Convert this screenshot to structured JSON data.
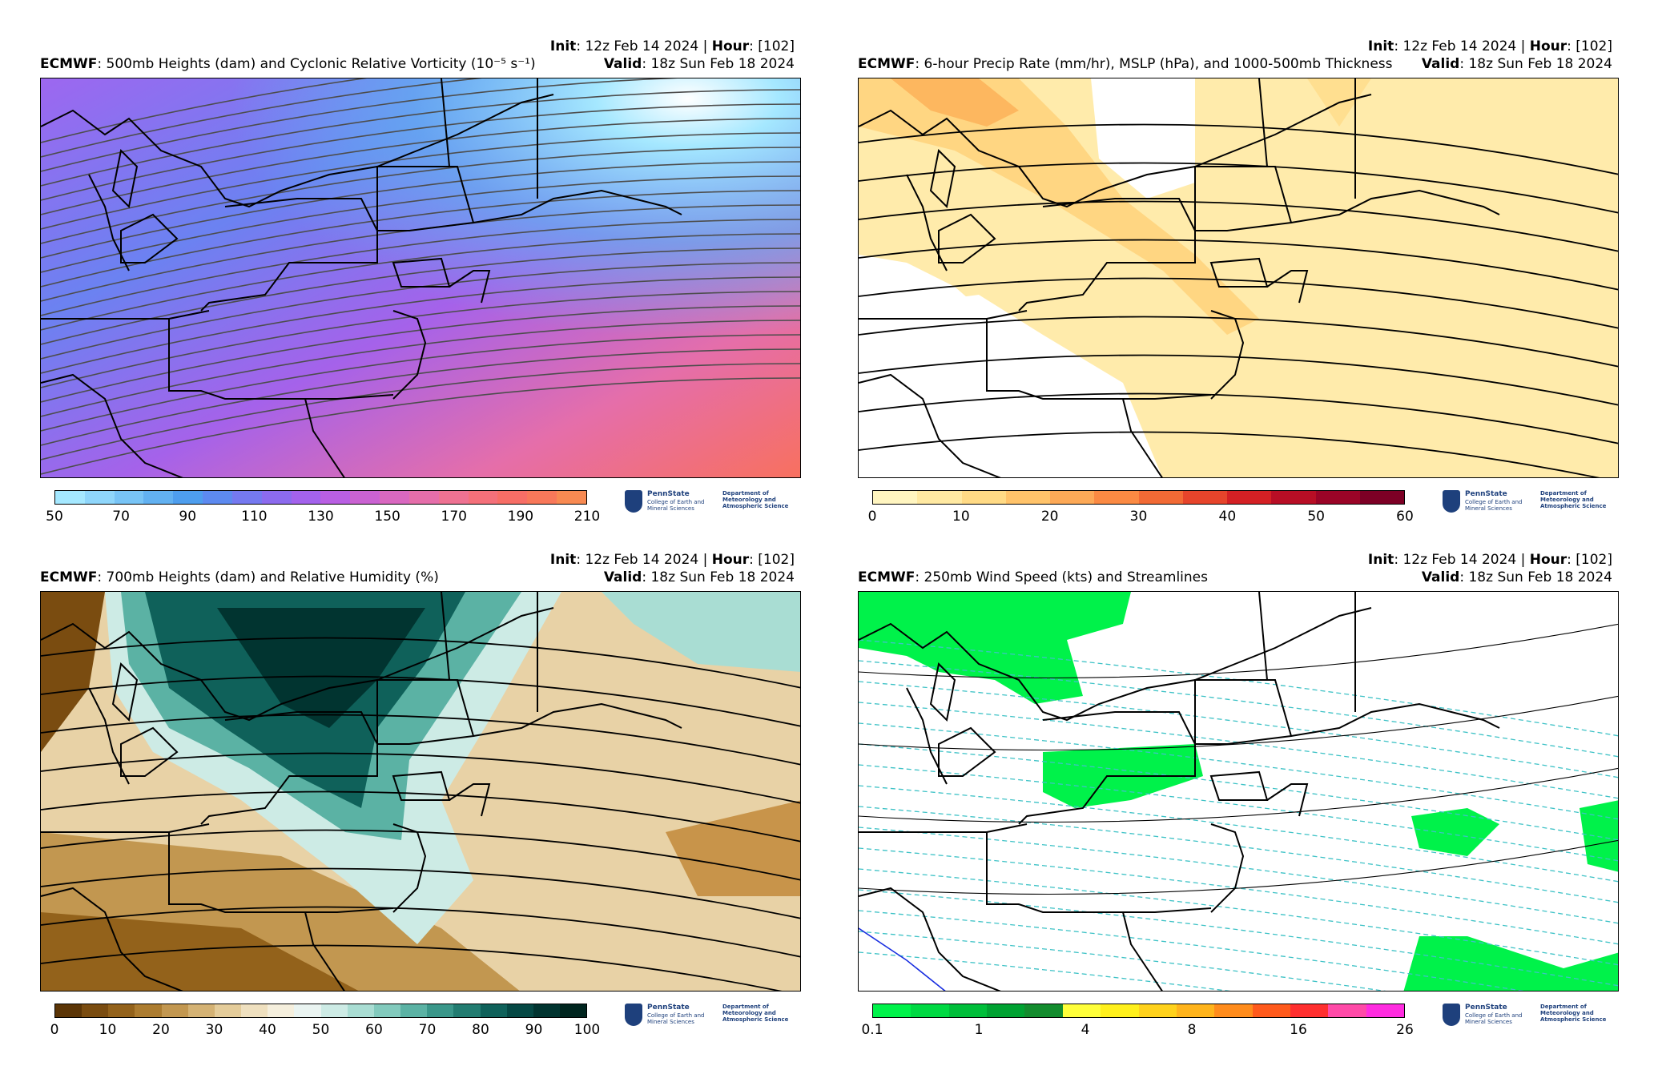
{
  "common": {
    "init_label": "Init",
    "init_value": ": 12z Feb 14 2024 | ",
    "hour_label": "Hour",
    "hour_value": ": [102]",
    "valid_label": "Valid",
    "valid_value": ": 18z Sun Feb 18 2024",
    "model": "ECMWF",
    "logo_name": "PennState",
    "logo_college": "College of Earth and Mineral Sciences",
    "logo_dept": "Department of Meteorology and Atmospheric Science"
  },
  "panels": [
    {
      "title": ": 500mb Heights (dam) and Cyclonic Relative Vorticity (10⁻⁵ s⁻¹)",
      "colors": [
        "#a5e8ff",
        "#8fd6fb",
        "#78c4f6",
        "#62b1f1",
        "#4e9eee",
        "#5d8af0",
        "#7579f0",
        "#8c6bee",
        "#a362ec",
        "#b95fe3",
        "#ca62d2",
        "#d968c0",
        "#e56eaa",
        "#ee7292",
        "#f4707a",
        "#f76e66",
        "#f8785a",
        "#f88a52"
      ],
      "ticks": [
        "50",
        "70",
        "90",
        "110",
        "130",
        "150",
        "170",
        "190",
        "210"
      ]
    },
    {
      "title": ": 6-hour Precip Rate (mm/hr), MSLP (hPa), and 1000-500mb Thickness",
      "colors": [
        "#fff5c0",
        "#ffe9a2",
        "#ffda85",
        "#ffc36a",
        "#fda957",
        "#fb8a43",
        "#f26a35",
        "#e6442b",
        "#d42024",
        "#b80e25",
        "#9a0427",
        "#7d0025"
      ],
      "ticks": [
        "0",
        "10",
        "20",
        "30",
        "40",
        "50",
        "60"
      ]
    },
    {
      "title": ": 700mb Heights (dam) and Relative Humidity (%)",
      "colors": [
        "#5b3506",
        "#7a4c10",
        "#93621b",
        "#ac7c30",
        "#c29750",
        "#d4b274",
        "#e4cc9a",
        "#efe0bf",
        "#f5efdd",
        "#eaf4f1",
        "#cdebe5",
        "#a9ddd3",
        "#82cabd",
        "#5bb2a4",
        "#3a978a",
        "#227c71",
        "#0f615a",
        "#054844",
        "#013430",
        "#00251f"
      ],
      "ticks": [
        "0",
        "10",
        "20",
        "30",
        "40",
        "50",
        "60",
        "70",
        "80",
        "90",
        "100"
      ]
    },
    {
      "title": ": 250mb Wind Speed (kts) and Streamlines",
      "colors": [
        "#00f24a",
        "#00d943",
        "#00be3a",
        "#00a232",
        "#138c2e",
        "#ffff3a",
        "#fff01c",
        "#ffd21c",
        "#ffb41c",
        "#ff8c1c",
        "#ff5a1c",
        "#ff2f2f",
        "#ff4aa8",
        "#ff2ce0"
      ],
      "ticks": [
        "0.1",
        "1",
        "4",
        "8",
        "16",
        "26"
      ]
    }
  ]
}
